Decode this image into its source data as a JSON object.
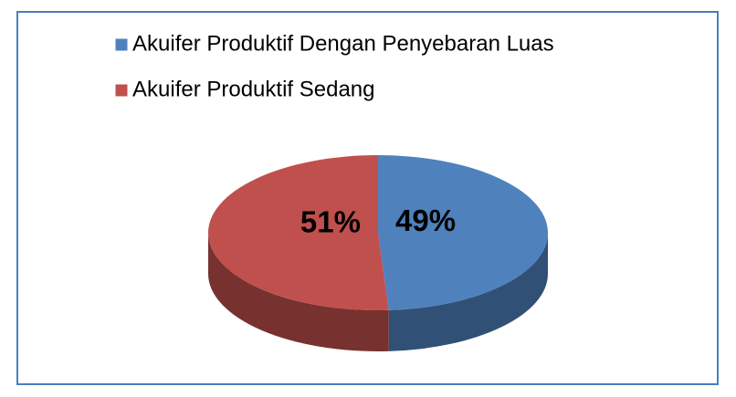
{
  "chart_data": {
    "type": "pie",
    "categories": [
      "Akuifer Produktif Dengan Penyebaran Luas",
      "Akuifer Produktif Sedang"
    ],
    "values": [
      49,
      51
    ],
    "value_labels": [
      "49%",
      "51%"
    ],
    "colors": [
      "#4f81bd",
      "#c0504d"
    ],
    "legend": "top-left"
  }
}
